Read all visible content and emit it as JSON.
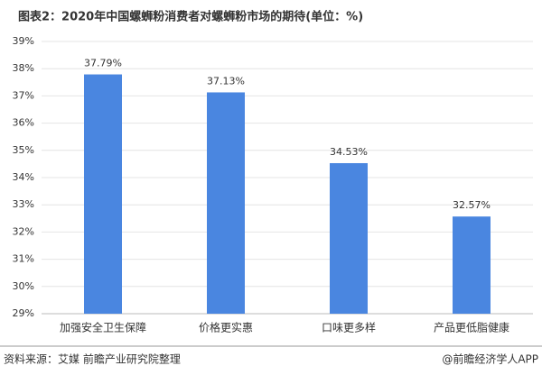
{
  "chart_data": {
    "type": "bar",
    "title": "图表2：2020年中国螺蛳粉消费者对螺蛳粉市场的期待(单位：%)",
    "categories": [
      "加强安全卫生保障",
      "价格更实惠",
      "口味更多样",
      "产品更低脂健康"
    ],
    "values": [
      37.79,
      37.13,
      34.53,
      32.57
    ],
    "value_labels": [
      "37.79%",
      "37.13%",
      "34.53%",
      "32.57%"
    ],
    "color": "#4a86e0",
    "ylim": [
      29,
      39
    ],
    "yticks": [
      {
        "value": 29,
        "label": "29%"
      },
      {
        "value": 30,
        "label": "30%"
      },
      {
        "value": 31,
        "label": "31%"
      },
      {
        "value": 32,
        "label": "32%"
      },
      {
        "value": 33,
        "label": "33%"
      },
      {
        "value": 34,
        "label": "34%"
      },
      {
        "value": 35,
        "label": "35%"
      },
      {
        "value": 36,
        "label": "36%"
      },
      {
        "value": 37,
        "label": "37%"
      },
      {
        "value": 38,
        "label": "38%"
      },
      {
        "value": 39,
        "label": "39%"
      }
    ],
    "grid": true
  },
  "footer": {
    "source": "资料来源：艾媒 前瞻产业研究院整理",
    "credit": "@前瞻经济学人APP"
  }
}
